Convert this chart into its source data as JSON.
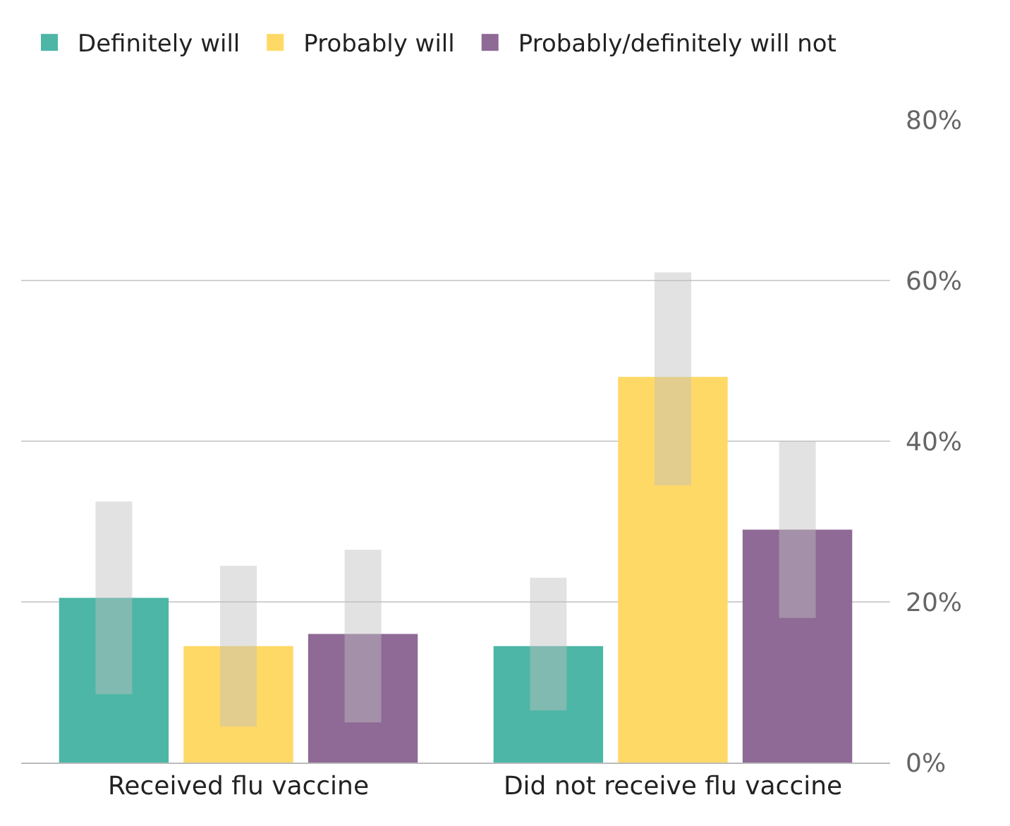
{
  "chart_data": {
    "type": "bar",
    "categories": [
      "Received flu vaccine",
      "Did not receive flu vaccine"
    ],
    "series": [
      {
        "name": "Definitely will",
        "color": "#4db6a6",
        "values": [
          20.5,
          14.5
        ],
        "errors": [
          [
            8.5,
            32.5
          ],
          [
            6.5,
            23
          ]
        ]
      },
      {
        "name": "Probably will",
        "color": "#ffd966",
        "values": [
          14.5,
          48
        ],
        "errors": [
          [
            4.5,
            24.5
          ],
          [
            34.5,
            61
          ]
        ]
      },
      {
        "name": "Probably/definitely will not",
        "color": "#8f6a96",
        "values": [
          16,
          29
        ],
        "errors": [
          [
            5,
            26.5
          ],
          [
            18,
            40
          ]
        ]
      }
    ],
    "ylim": [
      0,
      80
    ],
    "yticks": [
      {
        "value": 0,
        "label": "0%"
      },
      {
        "value": 20,
        "label": "20%"
      },
      {
        "value": 40,
        "label": "40%"
      },
      {
        "value": 60,
        "label": "60%"
      },
      {
        "value": 80,
        "label": "80%"
      }
    ],
    "grid": "y",
    "legend": "top left"
  }
}
